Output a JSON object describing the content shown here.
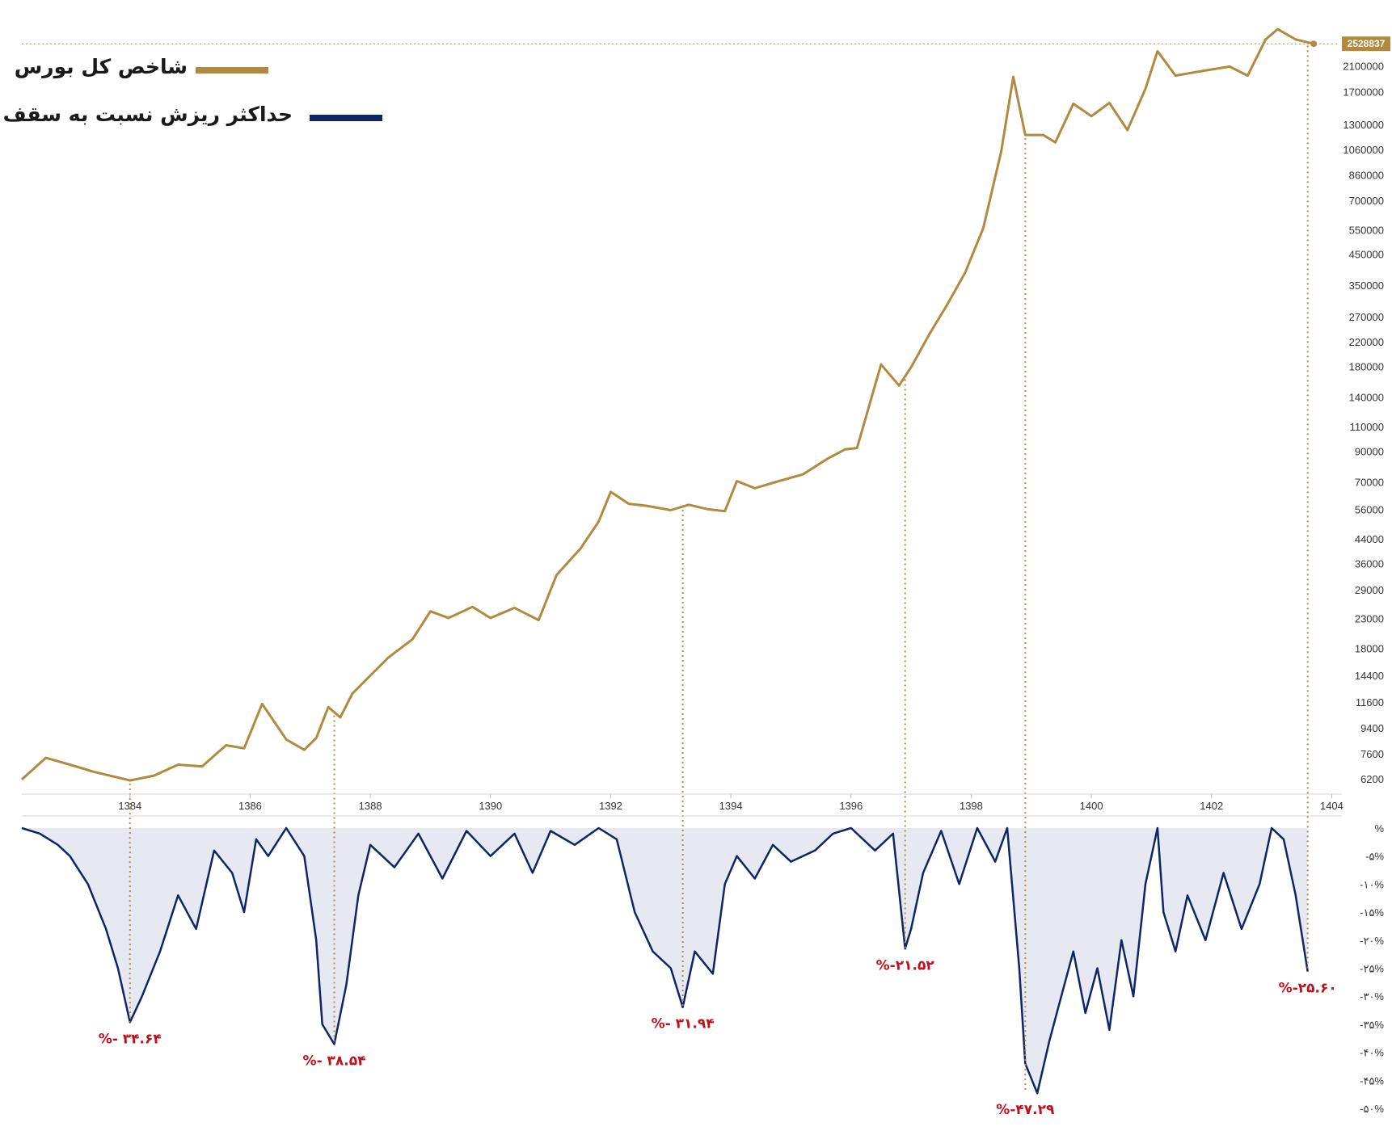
{
  "colors": {
    "index_line": "#b18a3f",
    "drawdown_line": "#0e2566",
    "drawdown_fill": "#e6e9f1",
    "annotation": "#c0101c",
    "guide": "#b8893f"
  },
  "legend": {
    "index_label": "شاخص کل بورس",
    "drawdown_label": "حداکثر ریزش نسبت به سقف"
  },
  "chart_data": [
    {
      "type": "line",
      "scale": "log",
      "name": "شاخص کل بورس",
      "last_value_label": "2528837",
      "x_ticks": [
        "1384",
        "1386",
        "1388",
        "1390",
        "1392",
        "1394",
        "1396",
        "1398",
        "1400",
        "1402",
        "1404"
      ],
      "xlim": [
        1382.2,
        1403.9
      ],
      "y_ticks": [
        "2100000",
        "1700000",
        "1300000",
        "1060000",
        "860000",
        "700000",
        "550000",
        "450000",
        "350000",
        "270000",
        "220000",
        "180000",
        "140000",
        "110000",
        "90000",
        "70000",
        "56000",
        "44000",
        "36000",
        "29000",
        "23000",
        "18000",
        "14400",
        "11600",
        "9400",
        "7600",
        "6200"
      ],
      "ylim": [
        5800,
        2600000
      ],
      "x": [
        1382.2,
        1382.6,
        1383.0,
        1383.4,
        1383.8,
        1384.0,
        1384.4,
        1384.8,
        1385.2,
        1385.6,
        1385.9,
        1386.2,
        1386.6,
        1386.9,
        1387.1,
        1387.3,
        1387.5,
        1387.7,
        1388.0,
        1388.3,
        1388.7,
        1389.0,
        1389.3,
        1389.7,
        1390.0,
        1390.4,
        1390.8,
        1391.1,
        1391.5,
        1391.8,
        1392.0,
        1392.3,
        1392.6,
        1393.0,
        1393.3,
        1393.6,
        1393.9,
        1394.1,
        1394.4,
        1394.8,
        1395.2,
        1395.6,
        1395.9,
        1396.1,
        1396.5,
        1396.8,
        1397.0,
        1397.3,
        1397.6,
        1397.9,
        1398.2,
        1398.5,
        1398.7,
        1398.9,
        1399.2,
        1399.4,
        1399.7,
        1400.0,
        1400.3,
        1400.6,
        1400.9,
        1401.1,
        1401.4,
        1401.7,
        1402.0,
        1402.3,
        1402.6,
        1402.9,
        1403.1,
        1403.4,
        1403.7
      ],
      "y": [
        6200,
        7400,
        7000,
        6600,
        6300,
        6150,
        6400,
        7000,
        6900,
        8200,
        8000,
        11500,
        8600,
        7900,
        8700,
        11200,
        10300,
        12500,
        14500,
        16800,
        19500,
        24500,
        23200,
        25400,
        23200,
        25200,
        22800,
        33000,
        41000,
        51000,
        65000,
        59000,
        58000,
        56000,
        58500,
        56500,
        55500,
        71000,
        67000,
        71000,
        75000,
        85000,
        92000,
        93000,
        184000,
        155000,
        180000,
        235000,
        300000,
        390000,
        560000,
        1050000,
        1930000,
        1200000,
        1200000,
        1130000,
        1550000,
        1400000,
        1560000,
        1250000,
        1750000,
        2380000,
        1950000,
        2000000,
        2050000,
        2100000,
        1950000,
        2620000,
        2850000,
        2620000,
        2528837
      ]
    },
    {
      "type": "area",
      "name": "حداکثر ریزش نسبت به سقف",
      "y_ticks": [
        "%",
        "-۵%",
        "-۱۰%",
        "-۱۵%",
        "-۲۰%",
        "-۲۵%",
        "-۳۰%",
        "-۳۵%",
        "-۴۰%",
        "-۴۵%",
        "-۵۰%"
      ],
      "ylim": [
        -50,
        0
      ],
      "x": [
        1382.2,
        1382.5,
        1382.8,
        1383.0,
        1383.3,
        1383.6,
        1383.8,
        1384.0,
        1384.2,
        1384.5,
        1384.8,
        1385.1,
        1385.4,
        1385.7,
        1385.9,
        1386.1,
        1386.3,
        1386.6,
        1386.9,
        1387.1,
        1387.2,
        1387.4,
        1387.6,
        1387.8,
        1388.0,
        1388.4,
        1388.8,
        1389.2,
        1389.6,
        1390.0,
        1390.4,
        1390.7,
        1391.0,
        1391.4,
        1391.8,
        1392.1,
        1392.4,
        1392.7,
        1393.0,
        1393.2,
        1393.4,
        1393.7,
        1393.9,
        1394.1,
        1394.4,
        1394.7,
        1395.0,
        1395.4,
        1395.7,
        1396.0,
        1396.2,
        1396.4,
        1396.7,
        1396.9,
        1397.0,
        1397.2,
        1397.5,
        1397.8,
        1398.1,
        1398.4,
        1398.6,
        1398.8,
        1398.9,
        1399.1,
        1399.3,
        1399.5,
        1399.7,
        1399.9,
        1400.1,
        1400.3,
        1400.5,
        1400.7,
        1400.9,
        1401.1,
        1401.2,
        1401.4,
        1401.6,
        1401.9,
        1402.2,
        1402.5,
        1402.8,
        1403.0,
        1403.2,
        1403.4,
        1403.6
      ],
      "y": [
        0,
        -1,
        -3,
        -5,
        -10,
        -18,
        -25,
        -34.64,
        -30,
        -22,
        -12,
        -18,
        -4,
        -8,
        -15,
        -2,
        -5,
        0,
        -5,
        -20,
        -35,
        -38.54,
        -28,
        -12,
        -3,
        -7,
        -1,
        -9,
        -0.5,
        -5,
        -1,
        -8,
        -0.5,
        -3,
        0,
        -2,
        -15,
        -22,
        -25,
        -31.94,
        -22,
        -26,
        -10,
        -5,
        -9,
        -3,
        -6,
        -4,
        -1,
        0,
        -2,
        -4,
        -1,
        -21.52,
        -18,
        -8,
        -0.5,
        -10,
        0,
        -6,
        0,
        -25,
        -42,
        -47.29,
        -38,
        -30,
        -22,
        -33,
        -25,
        -36,
        -20,
        -30,
        -10,
        0,
        -15,
        -22,
        -12,
        -20,
        -8,
        -18,
        -10,
        0,
        -2,
        -12,
        -25.6
      ]
    }
  ],
  "drawdown_labels": [
    {
      "x": 1384.0,
      "y": -34.64,
      "text": "%- ۳۴.۶۴"
    },
    {
      "x": 1387.4,
      "y": -38.54,
      "text": "%- ۳۸.۵۴"
    },
    {
      "x": 1393.2,
      "y": -31.94,
      "text": "%- ۳۱.۹۴"
    },
    {
      "x": 1396.9,
      "y": -21.52,
      "text": "%-۲۱.۵۲"
    },
    {
      "x": 1398.9,
      "y": -47.29,
      "text": "%-۴۷.۲۹"
    },
    {
      "x": 1403.6,
      "y": -25.6,
      "text": "%-۲۵.۶۰"
    }
  ]
}
